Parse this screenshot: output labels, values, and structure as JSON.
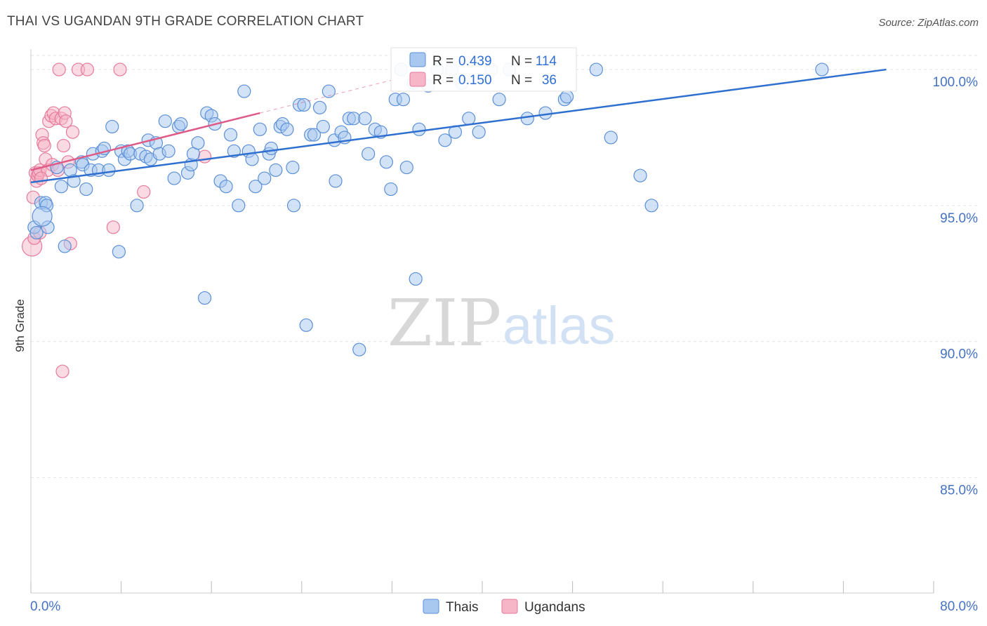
{
  "title": "THAI VS UGANDAN 9TH GRADE CORRELATION CHART",
  "source": "Source: ZipAtlas.com",
  "watermark": {
    "zip": "ZIP",
    "atlas": "atlas"
  },
  "colors": {
    "thai_fill": "#a8c8f0",
    "thai_stroke": "#5b8fd6",
    "thai_line": "#2e6fcf",
    "ugandan_fill": "#f6b6c8",
    "ugandan_stroke": "#e67a9c",
    "ugandan_line": "#e05a87",
    "grid": "#e3e3e3",
    "axis_text": "#4472c4"
  },
  "stats": {
    "thai": {
      "r_label": "R = ",
      "r_value": "0.439",
      "n_label": "N = ",
      "n_value": "114"
    },
    "ugandan": {
      "r_label": "R = ",
      "r_value": "0.150",
      "n_label": "N = ",
      "n_value": "36"
    }
  },
  "chart_data": {
    "type": "scatter",
    "title": "THAI VS UGANDAN 9TH GRADE CORRELATION CHART",
    "xlabel": "",
    "ylabel": "9th Grade",
    "xlim": [
      0,
      80
    ],
    "ylim": [
      80.75,
      100.75
    ],
    "x_tick_labels": [
      "0.0%",
      "80.0%"
    ],
    "y_ticks": [
      85,
      90,
      95,
      100
    ],
    "y_tick_labels": [
      "85.0%",
      "90.0%",
      "95.0%",
      "100.0%"
    ],
    "legend": [
      "Thais",
      "Ugandans"
    ],
    "series": [
      {
        "name": "Thais",
        "trend": {
          "x": [
            0,
            75.8
          ],
          "y": [
            95.85,
            100.0
          ]
        },
        "points": [
          [
            0.3,
            94.2
          ],
          [
            0.5,
            94.0
          ],
          [
            0.9,
            95.1
          ],
          [
            1.3,
            95.1
          ],
          [
            1.4,
            95.0
          ],
          [
            1.5,
            94.2
          ],
          [
            2.3,
            96.4
          ],
          [
            2.7,
            95.7
          ],
          [
            3.0,
            93.5
          ],
          [
            3.5,
            96.3
          ],
          [
            3.8,
            95.9
          ],
          [
            4.5,
            96.6
          ],
          [
            4.6,
            96.5
          ],
          [
            4.9,
            95.6
          ],
          [
            5.3,
            96.3
          ],
          [
            5.5,
            96.9
          ],
          [
            6.0,
            96.3
          ],
          [
            6.3,
            97.0
          ],
          [
            6.5,
            97.1
          ],
          [
            6.9,
            96.3
          ],
          [
            7.2,
            97.9
          ],
          [
            7.8,
            93.3
          ],
          [
            8.0,
            97.0
          ],
          [
            8.3,
            96.7
          ],
          [
            8.6,
            97.0
          ],
          [
            8.8,
            96.9
          ],
          [
            9.4,
            95.0
          ],
          [
            9.7,
            96.9
          ],
          [
            10.2,
            96.8
          ],
          [
            10.4,
            97.4
          ],
          [
            10.6,
            96.7
          ],
          [
            11.1,
            97.3
          ],
          [
            11.4,
            96.9
          ],
          [
            11.9,
            98.1
          ],
          [
            12.2,
            97.0
          ],
          [
            12.7,
            96.0
          ],
          [
            13.1,
            97.9
          ],
          [
            13.3,
            98.0
          ],
          [
            13.9,
            96.2
          ],
          [
            14.2,
            96.5
          ],
          [
            14.4,
            96.9
          ],
          [
            14.8,
            97.3
          ],
          [
            15.4,
            91.6
          ],
          [
            15.6,
            98.4
          ],
          [
            16.0,
            98.3
          ],
          [
            16.3,
            98.0
          ],
          [
            16.8,
            95.9
          ],
          [
            17.3,
            95.7
          ],
          [
            17.7,
            97.6
          ],
          [
            18.0,
            97.0
          ],
          [
            18.4,
            95.0
          ],
          [
            18.9,
            99.2
          ],
          [
            19.3,
            97.0
          ],
          [
            19.6,
            96.7
          ],
          [
            19.9,
            95.7
          ],
          [
            20.3,
            97.8
          ],
          [
            20.7,
            96.0
          ],
          [
            21.1,
            96.9
          ],
          [
            21.3,
            97.1
          ],
          [
            21.7,
            96.3
          ],
          [
            22.1,
            97.9
          ],
          [
            22.3,
            98.0
          ],
          [
            22.7,
            97.8
          ],
          [
            23.2,
            96.4
          ],
          [
            23.3,
            95.0
          ],
          [
            23.8,
            98.7
          ],
          [
            24.2,
            98.7
          ],
          [
            24.4,
            90.6
          ],
          [
            24.8,
            97.6
          ],
          [
            25.1,
            97.6
          ],
          [
            25.6,
            98.6
          ],
          [
            25.9,
            97.9
          ],
          [
            26.4,
            99.2
          ],
          [
            26.9,
            97.4
          ],
          [
            27.0,
            95.9
          ],
          [
            27.5,
            97.7
          ],
          [
            27.8,
            97.5
          ],
          [
            28.2,
            98.2
          ],
          [
            28.6,
            98.2
          ],
          [
            29.1,
            89.7
          ],
          [
            29.6,
            98.2
          ],
          [
            29.9,
            96.9
          ],
          [
            30.5,
            97.8
          ],
          [
            31.0,
            97.7
          ],
          [
            31.5,
            96.6
          ],
          [
            31.9,
            95.6
          ],
          [
            32.3,
            98.9
          ],
          [
            32.8,
            100.0
          ],
          [
            33.0,
            98.9
          ],
          [
            33.3,
            96.4
          ],
          [
            33.9,
            99.5
          ],
          [
            34.1,
            92.3
          ],
          [
            34.4,
            97.8
          ],
          [
            35.2,
            99.4
          ],
          [
            36.0,
            100.0
          ],
          [
            36.7,
            97.4
          ],
          [
            37.3,
            100.0
          ],
          [
            37.6,
            97.7
          ],
          [
            38.2,
            99.5
          ],
          [
            38.8,
            98.2
          ],
          [
            39.7,
            97.7
          ],
          [
            40.8,
            100.0
          ],
          [
            41.5,
            98.9
          ],
          [
            42.4,
            100.0
          ],
          [
            44.0,
            98.2
          ],
          [
            45.6,
            98.4
          ],
          [
            47.3,
            98.9
          ],
          [
            47.5,
            99.0
          ],
          [
            50.1,
            100.0
          ],
          [
            51.4,
            97.5
          ],
          [
            54.0,
            96.1
          ],
          [
            55.0,
            95.0
          ],
          [
            70.1,
            100.0
          ],
          [
            1.0,
            94.6
          ]
        ]
      },
      {
        "name": "Ugandans",
        "trend": {
          "x": [
            0,
            20.3
          ],
          "y": [
            96.3,
            98.4
          ]
        },
        "points": [
          [
            0.1,
            93.5
          ],
          [
            0.3,
            93.8
          ],
          [
            0.4,
            96.2
          ],
          [
            0.5,
            95.9
          ],
          [
            0.6,
            96.1
          ],
          [
            0.7,
            96.2
          ],
          [
            0.8,
            96.3
          ],
          [
            1.0,
            97.6
          ],
          [
            1.1,
            97.3
          ],
          [
            1.3,
            96.7
          ],
          [
            1.5,
            96.3
          ],
          [
            1.6,
            98.1
          ],
          [
            1.8,
            98.3
          ],
          [
            2.0,
            98.4
          ],
          [
            2.2,
            98.2
          ],
          [
            2.5,
            100.0
          ],
          [
            2.7,
            98.2
          ],
          [
            2.9,
            97.2
          ],
          [
            3.0,
            98.4
          ],
          [
            3.3,
            96.6
          ],
          [
            3.5,
            93.6
          ],
          [
            3.7,
            97.7
          ],
          [
            4.2,
            100.0
          ],
          [
            5.0,
            100.0
          ],
          [
            7.3,
            94.2
          ],
          [
            7.9,
            100.0
          ],
          [
            10.0,
            95.5
          ],
          [
            15.4,
            96.8
          ],
          [
            2.8,
            88.9
          ],
          [
            0.8,
            94.0
          ],
          [
            1.2,
            97.2
          ],
          [
            1.9,
            96.5
          ],
          [
            2.4,
            96.3
          ],
          [
            0.2,
            95.3
          ],
          [
            0.9,
            96.0
          ],
          [
            3.1,
            98.1
          ]
        ]
      }
    ]
  }
}
